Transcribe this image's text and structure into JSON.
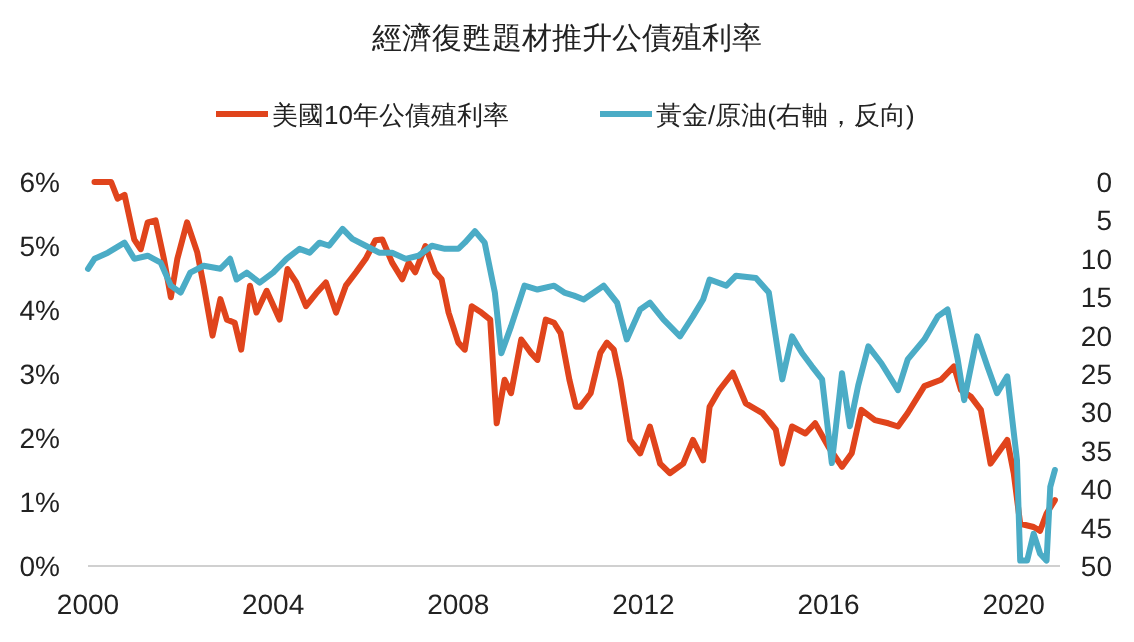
{
  "chart_data": {
    "type": "line",
    "title": "經濟復甦題材推升公債殖利率",
    "legend": "top",
    "grid": false,
    "line_style": "solid",
    "marker": "none",
    "xlim": [
      2000,
      2021
    ],
    "xticks": [
      2000,
      2004,
      2008,
      2012,
      2016,
      2020
    ],
    "ylim": [
      0,
      6
    ],
    "yticks": [
      {
        "value": 0,
        "label": "0%"
      },
      {
        "value": 1,
        "label": "1%"
      },
      {
        "value": 2,
        "label": "2%"
      },
      {
        "value": 3,
        "label": "3%"
      },
      {
        "value": 4,
        "label": "4%"
      },
      {
        "value": 5,
        "label": "5%"
      },
      {
        "value": 6,
        "label": "6%"
      }
    ],
    "y2lim": [
      50,
      0
    ],
    "y2ticks": [
      0,
      5,
      10,
      15,
      20,
      25,
      30,
      35,
      40,
      45,
      50
    ],
    "series": [
      {
        "name": "美國10年公債殖利率",
        "color": "#e0441c",
        "x": [
          2000.14,
          2000.5,
          2000.64,
          2000.79,
          2001.0,
          2001.14,
          2001.29,
          2001.46,
          2001.64,
          2001.79,
          2001.93,
          2002.14,
          2002.36,
          2002.5,
          2002.69,
          2002.86,
          2003.0,
          2003.17,
          2003.31,
          2003.5,
          2003.64,
          2003.86,
          2004.14,
          2004.31,
          2004.5,
          2004.71,
          2004.93,
          2005.14,
          2005.36,
          2005.57,
          2005.79,
          2006.0,
          2006.21,
          2006.36,
          2006.57,
          2006.79,
          2006.93,
          2007.07,
          2007.29,
          2007.5,
          2007.64,
          2007.79,
          2008.0,
          2008.14,
          2008.29,
          2008.5,
          2008.69,
          2008.83,
          2009.0,
          2009.14,
          2009.36,
          2009.57,
          2009.71,
          2009.89,
          2010.07,
          2010.21,
          2010.4,
          2010.54,
          2010.64,
          2010.86,
          2011.07,
          2011.21,
          2011.36,
          2011.5,
          2011.71,
          2011.93,
          2012.14,
          2012.36,
          2012.57,
          2012.86,
          2013.07,
          2013.29,
          2013.43,
          2013.64,
          2013.93,
          2014.21,
          2014.57,
          2014.86,
          2015.0,
          2015.21,
          2015.5,
          2015.71,
          2016.0,
          2016.29,
          2016.5,
          2016.71,
          2017.0,
          2017.29,
          2017.5,
          2017.71,
          2018.07,
          2018.43,
          2018.71,
          2018.86,
          2019.07,
          2019.29,
          2019.5,
          2019.86,
          2020.0,
          2020.14,
          2020.43,
          2020.57,
          2020.71,
          2020.89
        ],
        "values": [
          6.0,
          6.0,
          5.74,
          5.8,
          5.1,
          4.95,
          5.37,
          5.4,
          4.8,
          4.2,
          4.8,
          5.37,
          4.9,
          4.38,
          3.6,
          4.17,
          3.85,
          3.8,
          3.38,
          4.38,
          3.96,
          4.3,
          3.85,
          4.64,
          4.43,
          4.06,
          4.26,
          4.43,
          3.96,
          4.38,
          4.59,
          4.8,
          5.09,
          5.1,
          4.74,
          4.48,
          4.74,
          4.59,
          5.0,
          4.59,
          4.48,
          3.96,
          3.49,
          3.38,
          4.06,
          3.96,
          3.85,
          2.23,
          2.91,
          2.7,
          3.54,
          3.33,
          3.22,
          3.85,
          3.8,
          3.64,
          2.91,
          2.49,
          2.49,
          2.7,
          3.33,
          3.49,
          3.38,
          2.91,
          1.97,
          1.76,
          2.18,
          1.6,
          1.45,
          1.6,
          1.97,
          1.65,
          2.49,
          2.75,
          3.02,
          2.54,
          2.39,
          2.13,
          1.6,
          2.18,
          2.07,
          2.23,
          1.86,
          1.55,
          1.76,
          2.44,
          2.28,
          2.23,
          2.18,
          2.39,
          2.81,
          2.91,
          3.12,
          2.75,
          2.65,
          2.44,
          1.6,
          1.97,
          1.45,
          0.66,
          0.61,
          0.55,
          0.82,
          1.03
        ]
      },
      {
        "name": "黃金/原油(右軸，反向)",
        "color": "#4bacc6",
        "axis": "y2",
        "x": [
          2000.0,
          2000.14,
          2000.43,
          2000.79,
          2001.0,
          2001.29,
          2001.57,
          2001.79,
          2002.0,
          2002.21,
          2002.5,
          2002.86,
          2003.07,
          2003.21,
          2003.43,
          2003.71,
          2004.0,
          2004.29,
          2004.57,
          2004.79,
          2005.0,
          2005.21,
          2005.5,
          2005.71,
          2006.0,
          2006.29,
          2006.57,
          2006.86,
          2007.14,
          2007.43,
          2007.71,
          2008.0,
          2008.14,
          2008.36,
          2008.57,
          2008.79,
          2008.93,
          2009.14,
          2009.43,
          2009.71,
          2010.07,
          2010.29,
          2010.5,
          2010.71,
          2011.14,
          2011.43,
          2011.64,
          2011.93,
          2012.14,
          2012.43,
          2012.79,
          2013.07,
          2013.29,
          2013.43,
          2013.79,
          2014.0,
          2014.43,
          2014.71,
          2015.0,
          2015.21,
          2015.43,
          2015.64,
          2015.86,
          2016.07,
          2016.29,
          2016.46,
          2016.64,
          2016.86,
          2017.14,
          2017.5,
          2017.71,
          2018.07,
          2018.36,
          2018.57,
          2018.79,
          2018.93,
          2019.21,
          2019.43,
          2019.64,
          2019.86,
          2020.07,
          2020.14,
          2020.29,
          2020.43,
          2020.57,
          2020.71,
          2020.79,
          2020.89
        ],
        "values": [
          11.3,
          10,
          9.2,
          7.9,
          10,
          9.6,
          10.5,
          13.5,
          14.4,
          11.8,
          10.9,
          11.3,
          10,
          12.7,
          11.8,
          13.1,
          11.8,
          10,
          8.7,
          9.2,
          7.9,
          8.3,
          6.1,
          7.4,
          8.3,
          9.2,
          9.2,
          10,
          9.6,
          8.3,
          8.7,
          8.7,
          7.9,
          6.4,
          7.9,
          14.4,
          22.3,
          18.8,
          13.5,
          14,
          13.5,
          14.4,
          14.8,
          15.3,
          13.5,
          15.7,
          20.5,
          16.6,
          15.7,
          17.9,
          20.1,
          17.5,
          15.3,
          12.7,
          13.5,
          12.2,
          12.5,
          14.4,
          25.7,
          20.1,
          22.3,
          24,
          25.7,
          36.6,
          24.9,
          31.8,
          26.5,
          21.4,
          23.6,
          27.1,
          23.1,
          20.5,
          17.5,
          16.6,
          23.1,
          28.4,
          20.1,
          24,
          27.5,
          25.3,
          36.2,
          49.3,
          49.3,
          45.8,
          48.4,
          49.3,
          39.7,
          37.5
        ]
      }
    ]
  }
}
